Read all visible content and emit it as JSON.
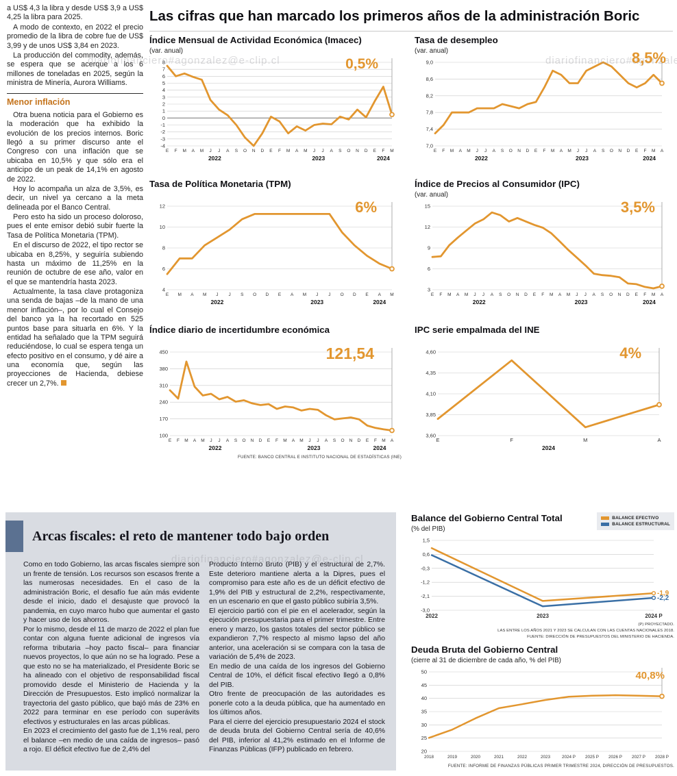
{
  "watermark": "diariofinanciero#agonzalez@e-clip.cl",
  "headline": "Las cifras que han marcado los primeros años de la administración Boric",
  "colors": {
    "accent_orange": "#E2962F",
    "accent_blue": "#3A6FA5",
    "box_gray": "#D9DCE2",
    "title_bar_blue": "#5B7191",
    "subhead_orange": "#C4731B"
  },
  "left_column": {
    "heading": "Menor inflación",
    "paragraphs": [
      "a US$ 4,3 la libra y desde US$ 3,9 a US$ 4,25 la libra para 2025.",
      "A modo de contexto, en 2022 el precio promedio de la libra de cobre fue de US$ 3,99 y de unos US$ 3,84 en 2023.",
      "La producción del commodity, además, se espera que se acerque a los 6 millones de toneladas en 2025, según la ministra de Minería, Aurora Williams.",
      "Otra buena noticia para el Gobierno es la moderación que ha exhibido la evolución de los precios internos. Boric llegó a su primer discurso ante el Congreso con una inflación que se ubicaba en 10,5% y que sólo era el anticipo de un peak de 14,1% en agosto de 2022.",
      "Hoy lo acompaña un alza de 3,5%, es decir, un nivel ya cercano a la meta delineada por el Banco Central.",
      "Pero esto ha sido un proceso doloroso, pues el ente emisor debió subir fuerte la Tasa de Política Monetaria (TPM).",
      "En el discurso de 2022, el tipo rector se ubicaba en 8,25%, y seguiría subiendo hasta un máximo de 11,25% en la reunión de octubre de ese año, valor en el que se mantendría hasta 2023.",
      "Actualmente, la tasa clave protagoniza una senda de bajas –de la mano de una menor inflación–, por lo cual el Consejo del banco ya la ha recortado en 525 puntos base para situarla en 6%. Y la entidad ha señalado que la TPM seguirá reduciéndose, lo cual se espera tenga un efecto positivo en el consumo, y dé aire a una economía que, según las proyecciones de Hacienda, debiese crecer un 2,7%."
    ]
  },
  "sources": {
    "top_charts": "FUENTE: BANCO CENTRAL E INSTITUTO NACIONAL DE ESTADÍSTICAS (INE)"
  },
  "fiscal_box": {
    "title": "Arcas fiscales: el reto de mantener todo bajo orden",
    "col1": [
      "Como en todo Gobierno, las arcas fiscales siempre son un frente de tensión. Los recursos son escasos frente a las numerosas necesidades. En el caso de la administración Boric, el desafío fue aún más evidente desde el inicio, dado el desajuste que provocó la pandemia, en cuyo marco hubo que aumentar el gasto y hacer uso de los ahorros.",
      "Por lo mismo, desde el 11 de marzo de 2022 el plan fue contar con alguna fuente adicional de ingresos vía reforma tributaria –hoy pacto fiscal– para financiar nuevos proyectos, lo que aún no se ha logrado. Pese a que esto no se ha materializado, el Presidente Boric se ha alineado con el objetivo de responsabilidad fiscal promovido desde el Ministerio de Hacienda y la Dirección de Presupuestos. Esto implicó normalizar la trayectoria del gasto público, que bajó más de 23% en 2022 para terminar en ese período con superávits efectivos y estructurales en las arcas públicas.",
      "En 2023 el crecimiento del gasto fue de 1,1% real, pero el balance –en medio de una caída de ingresos– pasó a rojo. El déficit efectivo fue de 2,4% del"
    ],
    "col2": [
      "Producto Interno Bruto (PIB) y el estructural de 2,7%. Este deterioro mantiene alerta a la Dipres, pues el compromiso para este año es de un déficit efectivo de 1,9% del PIB y estructural de 2,2%, respectivamente, en un escenario en que el gasto público subiría 3,5%.",
      "El ejercicio partió con el pie en el acelerador, según la ejecución presupuestaria para el primer trimestre. Entre enero y marzo, los gastos totales del sector público se expandieron 7,7% respecto al mismo lapso del año anterior, una aceleración si se compara con la tasa de variación de 5,4% de 2023.",
      "En medio de una caída de los ingresos del Gobierno Central de 10%, el déficit fiscal efectivo llegó a 0,8% del PIB.",
      "Otro frente de preocupación de las autoridades es ponerle coto a la deuda pública, que ha aumentado en los últimos años.",
      "Para el cierre del ejercicio presupuestario 2024 el stock de deuda bruta del Gobierno Central sería de 40,6% del PIB, inferior al 41,2% estimado en el Informe de Finanzas Públicas (IFP) publicado en febrero."
    ]
  },
  "chart_data": [
    {
      "type": "line",
      "title": "Índice Mensual de Actividad Económica (Imacec)",
      "subtitle": "(var. anual)",
      "big_label": "0,5%",
      "ylim": [
        -4,
        8
      ],
      "ml": 26,
      "mr": 14,
      "zero_line": true,
      "endpoint": true,
      "y_ticks": [
        {
          "v": 8,
          "t": "8"
        },
        {
          "v": 7,
          "t": "7"
        },
        {
          "v": 6,
          "t": "6"
        },
        {
          "v": 5,
          "t": "5"
        },
        {
          "v": 4,
          "t": "4"
        },
        {
          "v": 3,
          "t": "3"
        },
        {
          "v": 2,
          "t": "2"
        },
        {
          "v": 1,
          "t": "1"
        },
        {
          "v": 0,
          "t": "0"
        },
        {
          "v": -1,
          "t": "-1"
        },
        {
          "v": -2,
          "t": "-2"
        },
        {
          "v": -3,
          "t": "-3"
        },
        {
          "v": -4,
          "t": "-4"
        }
      ],
      "x_labels": [
        "E",
        "F",
        "M",
        "A",
        "M",
        "J",
        "J",
        "A",
        "S",
        "O",
        "N",
        "D",
        "E",
        "F",
        "M",
        "A",
        "M",
        "J",
        "J",
        "A",
        "S",
        "O",
        "N",
        "D",
        "E",
        "F",
        "M"
      ],
      "year_ticks": [
        {
          "label": "2022",
          "i": 5.5
        },
        {
          "label": "2023",
          "i": 17.5
        },
        {
          "label": "2024",
          "i": 25
        }
      ],
      "series": [
        {
          "name": "imacec",
          "color": "#E2962F",
          "values": [
            7.5,
            6.0,
            6.4,
            5.9,
            5.5,
            2.6,
            1.2,
            0.4,
            -1.0,
            -2.8,
            -4.0,
            -2.2,
            0.2,
            -0.5,
            -2.2,
            -1.2,
            -1.8,
            -1.0,
            -0.8,
            -0.9,
            0.2,
            -0.2,
            1.2,
            0.1,
            2.4,
            4.5,
            0.5
          ]
        }
      ]
    },
    {
      "type": "line",
      "title": "Tasa de desempleo",
      "subtitle": "(var. anual)",
      "big_label": "8,5%",
      "ylim": [
        7.0,
        9.0
      ],
      "ml": 30,
      "mr": 14,
      "endpoint": true,
      "y_ticks": [
        {
          "v": 9.0,
          "t": "9,0"
        },
        {
          "v": 8.6,
          "t": "8,6"
        },
        {
          "v": 8.2,
          "t": "8,2"
        },
        {
          "v": 7.8,
          "t": "7,8"
        },
        {
          "v": 7.4,
          "t": "7,4"
        },
        {
          "v": 7.0,
          "t": "7,0"
        }
      ],
      "x_labels": [
        "E",
        "F",
        "M",
        "A",
        "M",
        "J",
        "J",
        "A",
        "S",
        "O",
        "N",
        "D",
        "E",
        "F",
        "M",
        "A",
        "M",
        "J",
        "J",
        "A",
        "S",
        "O",
        "N",
        "D",
        "E",
        "F",
        "M",
        "A"
      ],
      "year_ticks": [
        {
          "label": "2022",
          "i": 5.5
        },
        {
          "label": "2023",
          "i": 17.5
        },
        {
          "label": "2024",
          "i": 25.5
        }
      ],
      "series": [
        {
          "name": "desempleo",
          "color": "#E2962F",
          "values": [
            7.3,
            7.5,
            7.8,
            7.8,
            7.8,
            7.9,
            7.9,
            7.9,
            8.0,
            7.95,
            7.9,
            8.0,
            8.05,
            8.4,
            8.8,
            8.7,
            8.5,
            8.5,
            8.8,
            8.9,
            9.0,
            8.9,
            8.7,
            8.5,
            8.4,
            8.5,
            8.7,
            8.5
          ]
        }
      ]
    },
    {
      "type": "line",
      "title": "Tasa de Política Monetaria (TPM)",
      "subtitle": "",
      "big_label": "6%",
      "ylim": [
        4,
        12
      ],
      "ml": 26,
      "mr": 14,
      "endpoint": true,
      "y_ticks": [
        {
          "v": 12,
          "t": "12"
        },
        {
          "v": 10,
          "t": "10"
        },
        {
          "v": 8,
          "t": "8"
        },
        {
          "v": 6,
          "t": "6"
        },
        {
          "v": 4,
          "t": "4"
        }
      ],
      "x_labels": [
        "E",
        "M",
        "A",
        "M",
        "J",
        "J",
        "S",
        "O",
        "D",
        "E",
        "A",
        "M",
        "J",
        "J",
        "O",
        "D",
        "E",
        "A",
        "M"
      ],
      "year_ticks": [
        {
          "label": "2022",
          "i": 4
        },
        {
          "label": "2023",
          "i": 12
        },
        {
          "label": "2024",
          "i": 17
        }
      ],
      "series": [
        {
          "name": "tpm",
          "color": "#E2962F",
          "values": [
            5.5,
            7.0,
            7.0,
            8.25,
            9.0,
            9.75,
            10.75,
            11.25,
            11.25,
            11.25,
            11.25,
            11.25,
            11.25,
            11.25,
            9.5,
            8.25,
            7.25,
            6.5,
            6.0
          ]
        }
      ]
    },
    {
      "type": "line",
      "title": "Índice de Precios al Consumidor (IPC)",
      "subtitle": "(var. anual)",
      "big_label": "3,5%",
      "ylim": [
        3,
        15
      ],
      "ml": 26,
      "mr": 14,
      "endpoint": true,
      "y_ticks": [
        {
          "v": 15,
          "t": "15"
        },
        {
          "v": 12,
          "t": "12"
        },
        {
          "v": 9,
          "t": "9"
        },
        {
          "v": 6,
          "t": "6"
        },
        {
          "v": 3,
          "t": "3"
        }
      ],
      "x_labels": [
        "E",
        "F",
        "M",
        "A",
        "M",
        "J",
        "J",
        "A",
        "S",
        "O",
        "N",
        "D",
        "E",
        "F",
        "M",
        "A",
        "M",
        "J",
        "J",
        "A",
        "S",
        "O",
        "N",
        "D",
        "E",
        "F",
        "M",
        "A"
      ],
      "year_ticks": [
        {
          "label": "2022",
          "i": 5.5
        },
        {
          "label": "2023",
          "i": 17.5
        },
        {
          "label": "2024",
          "i": 25.5
        }
      ],
      "series": [
        {
          "name": "ipc",
          "color": "#E2962F",
          "values": [
            7.7,
            7.8,
            9.4,
            10.5,
            11.5,
            12.5,
            13.1,
            14.1,
            13.7,
            12.8,
            13.3,
            12.8,
            12.3,
            11.9,
            11.1,
            9.9,
            8.7,
            7.6,
            6.5,
            5.3,
            5.1,
            5.0,
            4.8,
            3.9,
            3.8,
            3.4,
            3.2,
            3.5
          ]
        }
      ]
    },
    {
      "type": "line",
      "title": "Índice diario de incertidumbre económica",
      "subtitle": "",
      "big_label": "121,54",
      "ylim": [
        100,
        450
      ],
      "ml": 30,
      "mr": 14,
      "endpoint": true,
      "y_ticks": [
        {
          "v": 450,
          "t": "450"
        },
        {
          "v": 380,
          "t": "380"
        },
        {
          "v": 310,
          "t": "310"
        },
        {
          "v": 240,
          "t": "240"
        },
        {
          "v": 170,
          "t": "170"
        },
        {
          "v": 100,
          "t": "100"
        }
      ],
      "x_labels": [
        "E",
        "F",
        "M",
        "A",
        "M",
        "J",
        "J",
        "A",
        "S",
        "O",
        "N",
        "D",
        "E",
        "F",
        "M",
        "A",
        "M",
        "J",
        "J",
        "A",
        "S",
        "O",
        "N",
        "D",
        "E",
        "F",
        "M",
        "A"
      ],
      "year_ticks": [
        {
          "label": "2022",
          "i": 5.5
        },
        {
          "label": "2023",
          "i": 17.5
        },
        {
          "label": "2024",
          "i": 25.5
        }
      ],
      "series": [
        {
          "name": "incertidumbre",
          "color": "#E2962F",
          "values": [
            290,
            255,
            410,
            305,
            268,
            275,
            252,
            262,
            242,
            248,
            235,
            228,
            232,
            212,
            222,
            218,
            205,
            212,
            208,
            185,
            168,
            172,
            176,
            168,
            142,
            132,
            126,
            121.54
          ]
        }
      ]
    },
    {
      "type": "line",
      "title": "IPC serie empalmada del INE",
      "subtitle": "",
      "big_label": "4%",
      "ylim": [
        3.6,
        4.6
      ],
      "ml": 34,
      "mr": 18,
      "x_font": 7.5,
      "endpoint": true,
      "y_ticks": [
        {
          "v": 4.6,
          "t": "4,60"
        },
        {
          "v": 4.35,
          "t": "4,35"
        },
        {
          "v": 4.1,
          "t": "4,10"
        },
        {
          "v": 3.85,
          "t": "3,85"
        },
        {
          "v": 3.6,
          "t": "3,60"
        }
      ],
      "x_labels": [
        "E",
        "F",
        "M",
        "A"
      ],
      "year_ticks": [
        {
          "label": "2024",
          "i": 1.5
        }
      ],
      "series": [
        {
          "name": "ipc_empalmado",
          "color": "#E2962F",
          "values": [
            3.8,
            4.5,
            3.7,
            3.97
          ]
        }
      ]
    },
    {
      "type": "line",
      "title": "Balance del Gobierno Central Total",
      "subtitle": "(% del PIB)",
      "big_label": "",
      "ylim": [
        -3.0,
        1.5
      ],
      "ml": 30,
      "mr": 30,
      "mb": 16,
      "x_font": 8,
      "x_bold": true,
      "x_dy": 11,
      "y_ticks": [
        {
          "v": 1.5,
          "t": "1,5"
        },
        {
          "v": 0.6,
          "t": "0,6"
        },
        {
          "v": -0.3,
          "t": "-0,3"
        },
        {
          "v": -1.2,
          "t": "-1,2"
        },
        {
          "v": -2.1,
          "t": "-2,1"
        },
        {
          "v": -3.0,
          "t": "-3,0"
        }
      ],
      "x_labels": [
        "2022",
        "2023",
        "2024 P"
      ],
      "year_ticks": [],
      "legend": [
        {
          "label": "BALANCE EFECTIVO",
          "color": "#E2962F"
        },
        {
          "label": "BALANCE ESTRUCTURAL",
          "color": "#3A6FA5"
        }
      ],
      "series": [
        {
          "name": "balance_efectivo",
          "color": "#E2962F",
          "w": 2.5,
          "end_label": "-1,9",
          "values": [
            1.0,
            -2.4,
            -1.9
          ]
        },
        {
          "name": "balance_estructural",
          "color": "#3A6FA5",
          "w": 2.5,
          "end_label": "-2,2",
          "values": [
            0.55,
            -2.75,
            -2.2
          ]
        }
      ],
      "footnotes": [
        "(P) PROYECTADO.",
        "LAS ENTRE LOS AÑOS 2021 Y 2023 SE CALCULAN  CON LAS CUENTAS NACIONALES 2018.",
        "FUENTE: DIRECCIÓN DE PRESUPUESTOS DEL MINISTERIO DE HACIENDA."
      ]
    },
    {
      "type": "line",
      "title": "Deuda Bruta del Gobierno Central",
      "subtitle": "(cierre al 31 de diciembre de cada año, % del PIB)",
      "big_label": "40,8%",
      "ylim": [
        20,
        50
      ],
      "ml": 26,
      "mr": 18,
      "mb": 16,
      "x_font": 6.3,
      "x_dy": 10,
      "endpoint": true,
      "y_ticks": [
        {
          "v": 50,
          "t": "50"
        },
        {
          "v": 45,
          "t": "45"
        },
        {
          "v": 40,
          "t": "40"
        },
        {
          "v": 35,
          "t": "35"
        },
        {
          "v": 30,
          "t": "30"
        },
        {
          "v": 25,
          "t": "25"
        },
        {
          "v": 20,
          "t": "20"
        }
      ],
      "x_labels": [
        "2018",
        "2019",
        "2020",
        "2021",
        "2022",
        "2023",
        "2024 P",
        "2025 P",
        "2026 P",
        "2027 P",
        "2028 P"
      ],
      "year_ticks": [],
      "series": [
        {
          "name": "deuda_bruta",
          "color": "#E2962F",
          "w": 2.5,
          "values": [
            25.1,
            28.2,
            32.5,
            36.3,
            37.8,
            39.4,
            40.6,
            41.0,
            41.2,
            41.0,
            40.8
          ]
        }
      ],
      "source": "FUENTE: INFORME DE FINANZAS PÚBLICAS PRIMER TRIMESTRE 2024, DIRECCIÓN DE PRESUPUESTOS."
    }
  ]
}
